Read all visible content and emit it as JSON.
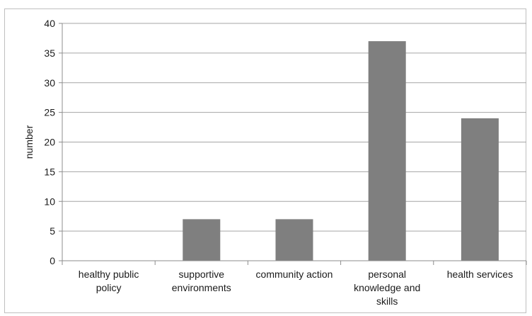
{
  "chart_data": {
    "type": "bar",
    "categories": [
      [
        "healthy public",
        "policy"
      ],
      [
        "supportive",
        "environments"
      ],
      [
        "community action"
      ],
      [
        "personal",
        "knowledge and",
        "skills"
      ],
      [
        "health services"
      ]
    ],
    "values": [
      0,
      7,
      7,
      37,
      24
    ],
    "title": "",
    "xlabel": "",
    "ylabel": "number",
    "ylim": [
      0,
      40
    ],
    "yticks": [
      0,
      5,
      10,
      15,
      20,
      25,
      30,
      35,
      40
    ],
    "grid": true,
    "legend": "none",
    "bar_color": "#7f7f7f",
    "grid_color": "#a6a6a6",
    "axis_color": "#8c8c8c"
  }
}
